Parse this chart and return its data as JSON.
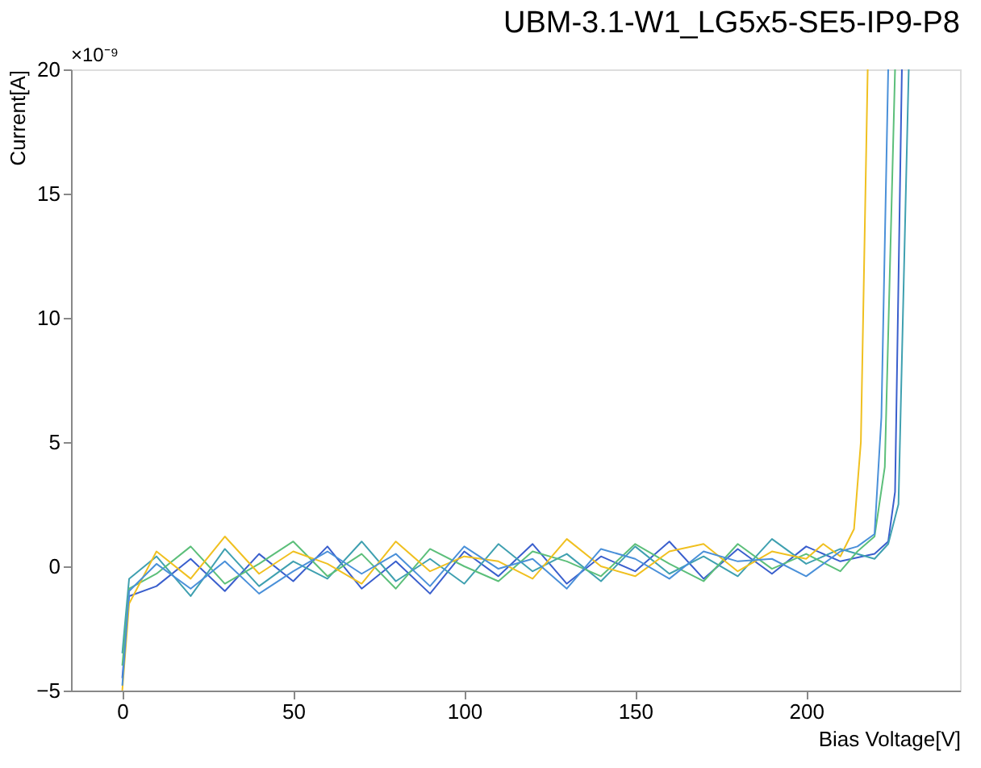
{
  "chart_data": {
    "type": "line",
    "title": "UBM-3.1-W1_LG5x5-SE5-IP9-P8",
    "xlabel": "Bias Voltage[V]",
    "ylabel": "Current[A]",
    "annotations": [
      "×10⁻⁹"
    ],
    "xlim": [
      -15,
      245
    ],
    "xticks": [
      0,
      50,
      100,
      150,
      200
    ],
    "ylim": [
      -5,
      20
    ],
    "yticks": [
      -5,
      0,
      5,
      10,
      15,
      20
    ],
    "grid": false,
    "legend": false,
    "marker": "none",
    "line_style": "solid",
    "series": [
      {
        "color": "#3a5fcd",
        "x": [
          0,
          2,
          10,
          20,
          30,
          40,
          50,
          60,
          70,
          80,
          90,
          100,
          110,
          120,
          130,
          140,
          150,
          160,
          170,
          180,
          190,
          200,
          210,
          220,
          224,
          226,
          228
        ],
        "values": [
          -4.5,
          -1.2,
          -0.8,
          0.3,
          -1.0,
          0.5,
          -0.6,
          0.8,
          -0.9,
          0.2,
          -1.1,
          0.6,
          -0.4,
          0.9,
          -0.7,
          0.4,
          -0.2,
          1.0,
          -0.5,
          0.7,
          -0.3,
          0.8,
          0.2,
          0.5,
          1.0,
          3.0,
          20
        ]
      },
      {
        "color": "#3fa0b0",
        "x": [
          0,
          2,
          10,
          20,
          30,
          40,
          50,
          60,
          70,
          80,
          90,
          100,
          110,
          120,
          130,
          140,
          150,
          160,
          170,
          180,
          190,
          200,
          210,
          220,
          224,
          227,
          230
        ],
        "values": [
          -3.5,
          -0.5,
          0.4,
          -1.2,
          0.7,
          -0.8,
          0.2,
          -0.5,
          1.0,
          -0.6,
          0.3,
          -0.7,
          0.9,
          -0.2,
          0.5,
          -0.6,
          0.8,
          -0.3,
          0.4,
          -0.4,
          1.1,
          0.1,
          0.7,
          0.3,
          0.9,
          2.5,
          20
        ]
      },
      {
        "color": "#5cbf7a",
        "x": [
          0,
          2,
          10,
          20,
          30,
          40,
          50,
          60,
          70,
          80,
          90,
          100,
          110,
          120,
          130,
          140,
          150,
          160,
          170,
          180,
          190,
          200,
          210,
          215,
          220,
          223,
          226
        ],
        "values": [
          -4.0,
          -0.9,
          -0.3,
          0.8,
          -0.7,
          0.1,
          1.0,
          -0.4,
          0.5,
          -0.9,
          0.7,
          0.0,
          -0.6,
          0.6,
          0.2,
          -0.4,
          0.9,
          0.1,
          -0.6,
          0.9,
          -0.1,
          0.5,
          -0.2,
          0.6,
          1.2,
          4.0,
          20
        ]
      },
      {
        "color": "#f0c020",
        "x": [
          0,
          2,
          10,
          20,
          30,
          40,
          50,
          60,
          70,
          80,
          90,
          100,
          110,
          120,
          130,
          140,
          150,
          160,
          170,
          180,
          190,
          200,
          205,
          210,
          214,
          216,
          218
        ],
        "values": [
          -5,
          -1.5,
          0.6,
          -0.5,
          1.2,
          -0.3,
          0.6,
          0.1,
          -0.7,
          1.0,
          -0.2,
          0.4,
          0.2,
          -0.5,
          1.1,
          0.0,
          -0.4,
          0.6,
          0.9,
          -0.2,
          0.6,
          0.3,
          0.9,
          0.4,
          1.5,
          5.0,
          20
        ]
      },
      {
        "color": "#4a90d9",
        "x": [
          0,
          2,
          10,
          20,
          30,
          40,
          50,
          60,
          70,
          80,
          90,
          100,
          110,
          120,
          130,
          140,
          150,
          160,
          170,
          180,
          190,
          200,
          210,
          215,
          220,
          222,
          224
        ],
        "values": [
          -4.8,
          -1.0,
          0.1,
          -0.9,
          0.2,
          -1.1,
          -0.2,
          0.6,
          -0.3,
          0.5,
          -0.8,
          0.8,
          -0.1,
          0.3,
          -0.9,
          0.7,
          0.3,
          -0.5,
          0.6,
          0.2,
          0.3,
          -0.4,
          0.6,
          0.8,
          1.3,
          6.0,
          20
        ]
      }
    ]
  }
}
